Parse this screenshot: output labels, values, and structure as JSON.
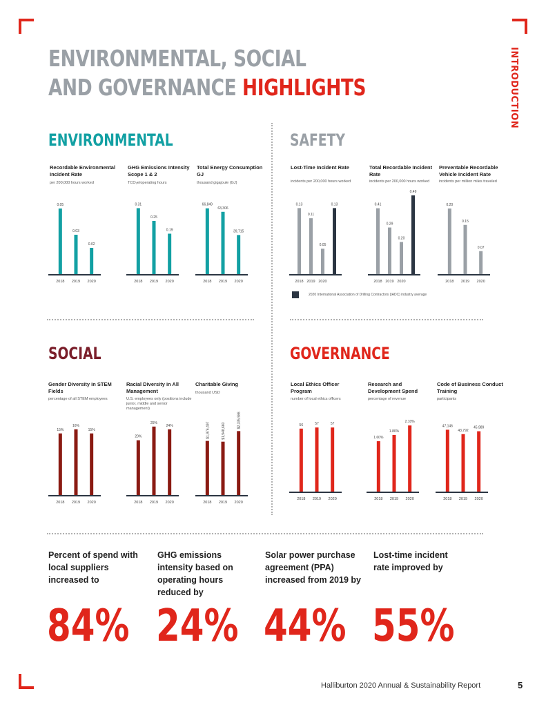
{
  "page": {
    "title_line1": "ENVIRONMENTAL, SOCIAL",
    "title_line2_a": "AND GOVERNANCE ",
    "title_line2_b": "HIGHLIGHTS",
    "side_tab": "INTRODUCTION",
    "footer": "Halliburton 2020 Annual & Sustainability Report",
    "page_number": "5"
  },
  "colors": {
    "red": "#e0261b",
    "teal": "#12a0a3",
    "gray_bar": "#9aa0a6",
    "dark_bar": "#2b3542",
    "maroon": "#8a1a12",
    "gray_title": "#9aa0a6",
    "social_title": "#7a1e2a"
  },
  "sections": {
    "environmental": "ENVIRONMENTAL",
    "safety": "SAFETY",
    "social": "SOCIAL",
    "governance": "GOVERNANCE"
  },
  "legend": {
    "text": "2020 International Association of Drilling Contractors (IADC) industry average"
  },
  "chart_data": [
    {
      "id": "env1",
      "type": "bar",
      "title": "Recordable Environmental Incident Rate",
      "subtitle": "per 200,000 hours worked",
      "categories": [
        "2018",
        "2019",
        "2020"
      ],
      "values": [
        0.05,
        0.03,
        0.02
      ],
      "labels": [
        "0.05",
        "0.03",
        "0.02"
      ],
      "color": "#12a0a3",
      "ylim": [
        0,
        0.06
      ]
    },
    {
      "id": "env2",
      "type": "bar",
      "title": "GHG Emissions Intensity Scope 1 & 2",
      "subtitle": "TCO₂e/operating hours",
      "categories": [
        "2018",
        "2019",
        "2020"
      ],
      "values": [
        0.31,
        0.25,
        0.19
      ],
      "labels": [
        "0.31",
        "0.25",
        "0.19"
      ],
      "color": "#12a0a3",
      "ylim": [
        0,
        0.37
      ]
    },
    {
      "id": "env3",
      "type": "bar",
      "title": "Total Energy Consumption GJ",
      "subtitle": "thousand gigajoule (GJ)",
      "categories": [
        "2018",
        "2019",
        "2020"
      ],
      "values": [
        66849,
        63306,
        39715
      ],
      "labels": [
        "66,849",
        "63,306",
        "39,715"
      ],
      "color": "#12a0a3",
      "ylim": [
        0,
        80000
      ]
    },
    {
      "id": "saf1",
      "type": "bar",
      "title": "Lost-Time Incident Rate",
      "subtitle": "incidents per 200,000 hours worked",
      "categories": [
        "2018",
        "2019",
        "2020"
      ],
      "values": [
        0.13,
        0.11,
        0.05
      ],
      "labels": [
        "0.13",
        "0.11",
        "0.05"
      ],
      "color": "#9aa0a6",
      "ylim": [
        0,
        0.155
      ],
      "benchmark": {
        "value": 0.13,
        "label": "0.13",
        "color": "#2b3542"
      }
    },
    {
      "id": "saf2",
      "type": "bar",
      "title": "Total Recordable Incident Rate",
      "subtitle": "incidents per 200,000 hours worked",
      "categories": [
        "2018",
        "2019",
        "2020"
      ],
      "values": [
        0.41,
        0.29,
        0.2
      ],
      "labels": [
        "0.41",
        "0.29",
        "0.20"
      ],
      "color": "#9aa0a6",
      "ylim": [
        0,
        0.49
      ],
      "benchmark": {
        "value": 0.49,
        "label": "0.49",
        "color": "#2b3542"
      }
    },
    {
      "id": "saf3",
      "type": "bar",
      "title": "Preventable Recordable Vehicle Incident Rate",
      "subtitle": "incidents per million miles traveled",
      "categories": [
        "2018",
        "2019",
        "2020"
      ],
      "values": [
        0.2,
        0.15,
        0.07
      ],
      "labels": [
        "0.20",
        "0.15",
        "0.07"
      ],
      "color": "#9aa0a6",
      "ylim": [
        0,
        0.24
      ]
    },
    {
      "id": "soc1",
      "type": "bar",
      "title": "Gender Diversity in STEM Fields",
      "subtitle": "percentage of all STEM employees",
      "categories": [
        "2018",
        "2019",
        "2020"
      ],
      "values": [
        15,
        16,
        15
      ],
      "labels": [
        "15%",
        "16%",
        "15%"
      ],
      "color": "#8a1a12",
      "ylim": [
        0,
        20
      ]
    },
    {
      "id": "soc2",
      "type": "bar",
      "title": "Racial Diversity in All Management",
      "subtitle": "U.S. employees only (positions include junior, middle and senior management)",
      "categories": [
        "2018",
        "2019",
        "2020"
      ],
      "values": [
        20,
        25,
        24
      ],
      "labels": [
        "20%",
        "25%",
        "24%"
      ],
      "color": "#8a1a12",
      "ylim": [
        0,
        30
      ]
    },
    {
      "id": "soc3",
      "type": "bar",
      "title": "Charitable Giving",
      "subtitle": "thousand USD",
      "categories": [
        "2018",
        "2019",
        "2020"
      ],
      "values": [
        1976497,
        1948660,
        2335586
      ],
      "labels": [
        "$1,976,497",
        "$1,948,660",
        "$2,335,586"
      ],
      "color": "#8a1a12",
      "ylim": [
        0,
        3000000
      ],
      "rotated_labels": true
    },
    {
      "id": "gov1",
      "type": "bar",
      "title": "Local Ethics Officer Program",
      "subtitle": "number of local ethics officers",
      "categories": [
        "2018",
        "2019",
        "2020"
      ],
      "values": [
        56,
        57,
        57
      ],
      "labels": [
        "56",
        "57",
        "57"
      ],
      "color": "#e0261b",
      "ylim": [
        0,
        70
      ]
    },
    {
      "id": "gov2",
      "type": "bar",
      "title": "Research and Development Spend",
      "subtitle": "percentage of revenue",
      "categories": [
        "2018",
        "2019",
        "2020"
      ],
      "values": [
        1.6,
        1.8,
        2.1
      ],
      "labels": [
        "1.60%",
        "1.80%",
        "2.10%"
      ],
      "color": "#e0261b",
      "ylim": [
        0,
        2.5
      ]
    },
    {
      "id": "gov3",
      "type": "bar",
      "title": "Code of Business Conduct Training",
      "subtitle": "participants",
      "categories": [
        "2018",
        "2019",
        "2020"
      ],
      "values": [
        47146,
        43792,
        45989
      ],
      "labels": [
        "47,146",
        "43,792",
        "45,989"
      ],
      "color": "#e0261b",
      "ylim": [
        0,
        60000
      ]
    }
  ],
  "kpis": [
    {
      "text": "Percent of spend with local suppliers increased to",
      "value": "84%"
    },
    {
      "text": "GHG emissions intensity based on operating hours reduced by",
      "value": "24%"
    },
    {
      "text": "Solar power purchase agreement (PPA) increased from 2019 by",
      "value": "44%"
    },
    {
      "text": "Lost-time incident rate improved by",
      "value": "55%"
    }
  ]
}
